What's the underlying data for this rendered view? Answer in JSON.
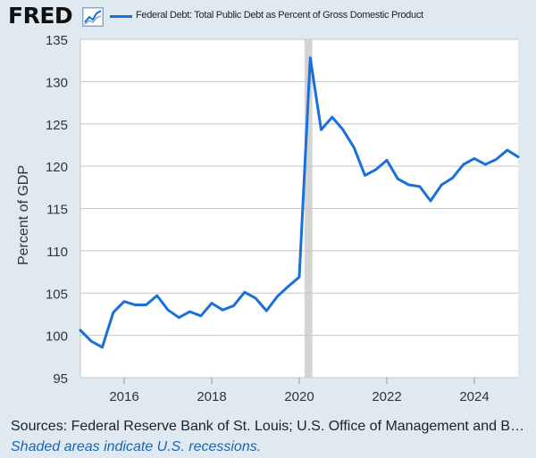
{
  "header": {
    "logo_text": "FRED",
    "logo_icon": "line-graph-icon",
    "series_title": "Federal Debt: Total Public Debt as Percent of Gross Domestic Product"
  },
  "footer": {
    "sources": "Sources: Federal Reserve Bank of St. Louis; U.S. Office of Management and Bu…",
    "recession_note": "Shaded areas indicate U.S. recessions."
  },
  "colors": {
    "background": "#e1e9f0",
    "plot_background": "#ffffff",
    "series": "#1a6fd8",
    "grid": "#c6c6c6",
    "recession": "#d4d4d4",
    "note_text": "#1a66b0"
  },
  "chart_data": {
    "type": "line",
    "title": "",
    "xlabel": "",
    "ylabel": "Percent of GDP",
    "xlim": [
      2015.0,
      2025.0
    ],
    "ylim": [
      95,
      135
    ],
    "yticks": [
      95,
      100,
      105,
      110,
      115,
      120,
      125,
      130,
      135
    ],
    "xticks": [
      2016,
      2018,
      2020,
      2022,
      2024
    ],
    "grid": true,
    "legend": "top-left",
    "recessions": [
      {
        "start": 2020.12,
        "end": 2020.3
      }
    ],
    "series": [
      {
        "name": "Federal Debt: Total Public Debt as Percent of Gross Domestic Product",
        "x": [
          2015.0,
          2015.25,
          2015.5,
          2015.75,
          2016.0,
          2016.25,
          2016.5,
          2016.75,
          2017.0,
          2017.25,
          2017.5,
          2017.75,
          2018.0,
          2018.25,
          2018.5,
          2018.75,
          2019.0,
          2019.25,
          2019.5,
          2019.75,
          2020.0,
          2020.25,
          2020.5,
          2020.75,
          2021.0,
          2021.25,
          2021.5,
          2021.75,
          2022.0,
          2022.25,
          2022.5,
          2022.75,
          2023.0,
          2023.25,
          2023.5,
          2023.75,
          2024.0,
          2024.25,
          2024.5,
          2024.75,
          2025.0
        ],
        "values": [
          100.6,
          99.3,
          98.6,
          102.7,
          104.0,
          103.6,
          103.6,
          104.7,
          103.0,
          102.1,
          102.8,
          102.3,
          103.8,
          103.0,
          103.5,
          105.1,
          104.4,
          102.9,
          104.6,
          105.8,
          106.9,
          132.8,
          124.3,
          125.8,
          124.3,
          122.2,
          118.9,
          119.6,
          120.7,
          118.5,
          117.8,
          117.6,
          115.9,
          117.8,
          118.6,
          120.2,
          120.9,
          120.2,
          120.8,
          121.9,
          121.1
        ]
      }
    ]
  }
}
